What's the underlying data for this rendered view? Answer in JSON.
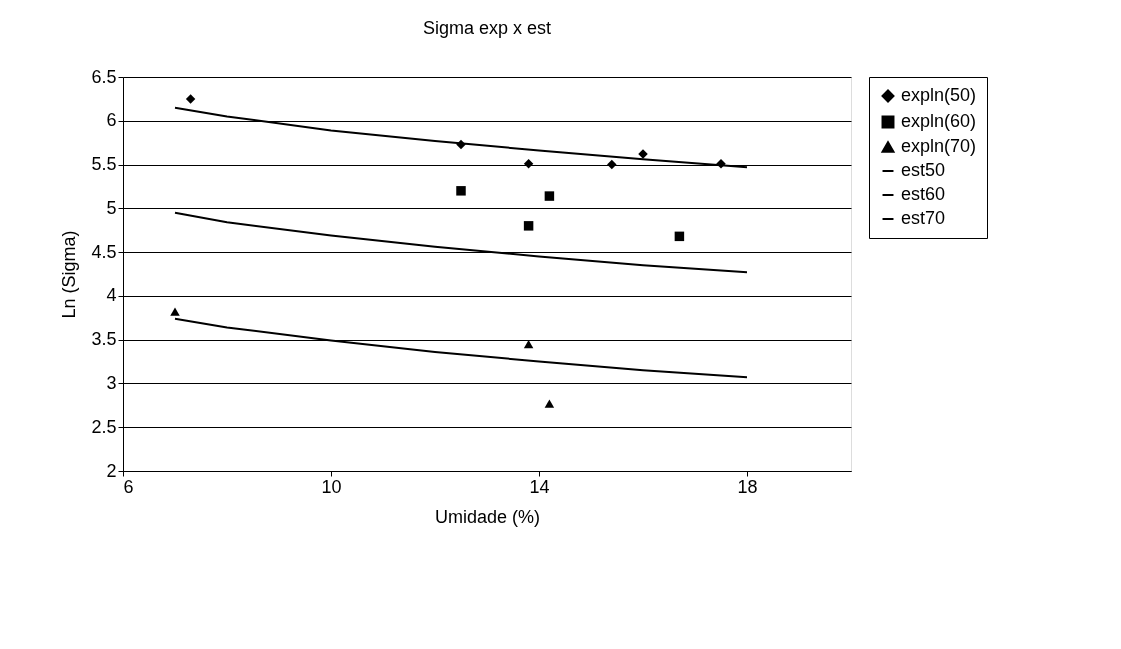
{
  "chart_data": {
    "type": "scatter",
    "title": "Sigma exp x est",
    "xlabel": "Umidade (%)",
    "ylabel": "Ln (Sigma)",
    "xlim": [
      6,
      20
    ],
    "xticks": [
      6,
      10,
      14,
      18
    ],
    "ylim": [
      2,
      6.5
    ],
    "yticks": [
      2,
      2.5,
      3,
      3.5,
      4,
      4.5,
      5,
      5.5,
      6,
      6.5
    ],
    "grid": "y",
    "legend": "right",
    "series": [
      {
        "name": "expln(50)",
        "marker": "diamond",
        "color": "#000000",
        "x": [
          7.3,
          12.5,
          13.8,
          15.4,
          16.0,
          17.5
        ],
        "values": [
          6.25,
          5.73,
          5.51,
          5.5,
          5.62,
          5.51
        ]
      },
      {
        "name": "expln(60)",
        "marker": "square",
        "color": "#000000",
        "x": [
          12.5,
          14.2,
          13.8,
          16.7
        ],
        "values": [
          5.2,
          5.14,
          4.8,
          4.68
        ]
      },
      {
        "name": "expln(70)",
        "marker": "triangle",
        "color": "#000000",
        "x": [
          7.0,
          13.8,
          14.2
        ],
        "values": [
          3.82,
          3.45,
          2.77
        ]
      },
      {
        "name": "est50",
        "type": "line",
        "line_style": "solid",
        "color": "#000000",
        "x": [
          7,
          8,
          10,
          12,
          14,
          16,
          18
        ],
        "values": [
          6.15,
          6.05,
          5.89,
          5.77,
          5.66,
          5.56,
          5.47
        ]
      },
      {
        "name": "est60",
        "type": "line",
        "line_style": "solid",
        "color": "#000000",
        "x": [
          7,
          8,
          10,
          12,
          14,
          16,
          18
        ],
        "values": [
          4.95,
          4.84,
          4.69,
          4.56,
          4.45,
          4.35,
          4.27
        ]
      },
      {
        "name": "est70",
        "type": "line",
        "line_style": "solid",
        "color": "#000000",
        "x": [
          7,
          8,
          10,
          12,
          14,
          16,
          18
        ],
        "values": [
          3.74,
          3.64,
          3.49,
          3.36,
          3.25,
          3.15,
          3.07
        ]
      }
    ]
  }
}
